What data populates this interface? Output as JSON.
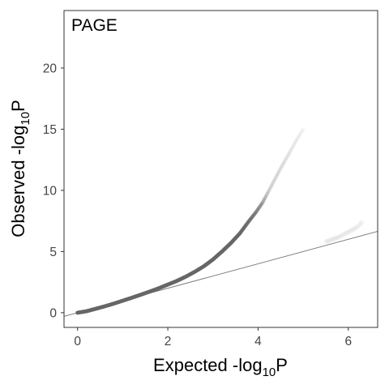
{
  "chart_data": {
    "type": "scatter",
    "title": "PAGE",
    "xlabel": {
      "prefix": "Expected -log",
      "subscript": "10",
      "suffix": "P"
    },
    "ylabel": {
      "prefix": "Observed -log",
      "subscript": "10",
      "suffix": "P"
    },
    "xlim": [
      -0.3,
      6.65
    ],
    "ylim": [
      -1.2,
      24.7
    ],
    "x_ticks": [
      0,
      2,
      4,
      6
    ],
    "y_ticks": [
      0,
      5,
      10,
      15,
      20
    ],
    "grid": false,
    "legend": "none",
    "reference_line": {
      "slope": 1,
      "intercept": 0,
      "color": "#808080"
    },
    "point_color": "#666666",
    "series": [
      {
        "values": [
          {
            "x": 0.0,
            "y": 0.0
          },
          {
            "x": 0.2,
            "y": 0.12
          },
          {
            "x": 0.4,
            "y": 0.32
          },
          {
            "x": 0.6,
            "y": 0.52
          },
          {
            "x": 0.8,
            "y": 0.74
          },
          {
            "x": 1.0,
            "y": 0.98
          },
          {
            "x": 1.2,
            "y": 1.22
          },
          {
            "x": 1.4,
            "y": 1.47
          },
          {
            "x": 1.6,
            "y": 1.73
          },
          {
            "x": 1.8,
            "y": 2.0
          },
          {
            "x": 2.0,
            "y": 2.3
          },
          {
            "x": 2.2,
            "y": 2.6
          },
          {
            "x": 2.4,
            "y": 2.95
          },
          {
            "x": 2.6,
            "y": 3.35
          },
          {
            "x": 2.8,
            "y": 3.8
          },
          {
            "x": 3.0,
            "y": 4.35
          },
          {
            "x": 3.2,
            "y": 5.0
          },
          {
            "x": 3.4,
            "y": 5.7
          },
          {
            "x": 3.6,
            "y": 6.5
          },
          {
            "x": 3.8,
            "y": 7.5
          },
          {
            "x": 3.95,
            "y": 8.2
          },
          {
            "x": 4.1,
            "y": 9.0
          },
          {
            "x": 4.3,
            "y": 10.4
          },
          {
            "x": 4.5,
            "y": 11.8
          },
          {
            "x": 4.7,
            "y": 13.1
          },
          {
            "x": 4.85,
            "y": 14.1
          },
          {
            "x": 5.0,
            "y": 15.0
          }
        ]
      },
      {
        "values": [
          {
            "x": 5.5,
            "y": 5.8
          },
          {
            "x": 5.8,
            "y": 6.2
          },
          {
            "x": 6.0,
            "y": 6.6
          },
          {
            "x": 6.2,
            "y": 7.0
          },
          {
            "x": 6.3,
            "y": 7.4
          }
        ]
      }
    ]
  }
}
